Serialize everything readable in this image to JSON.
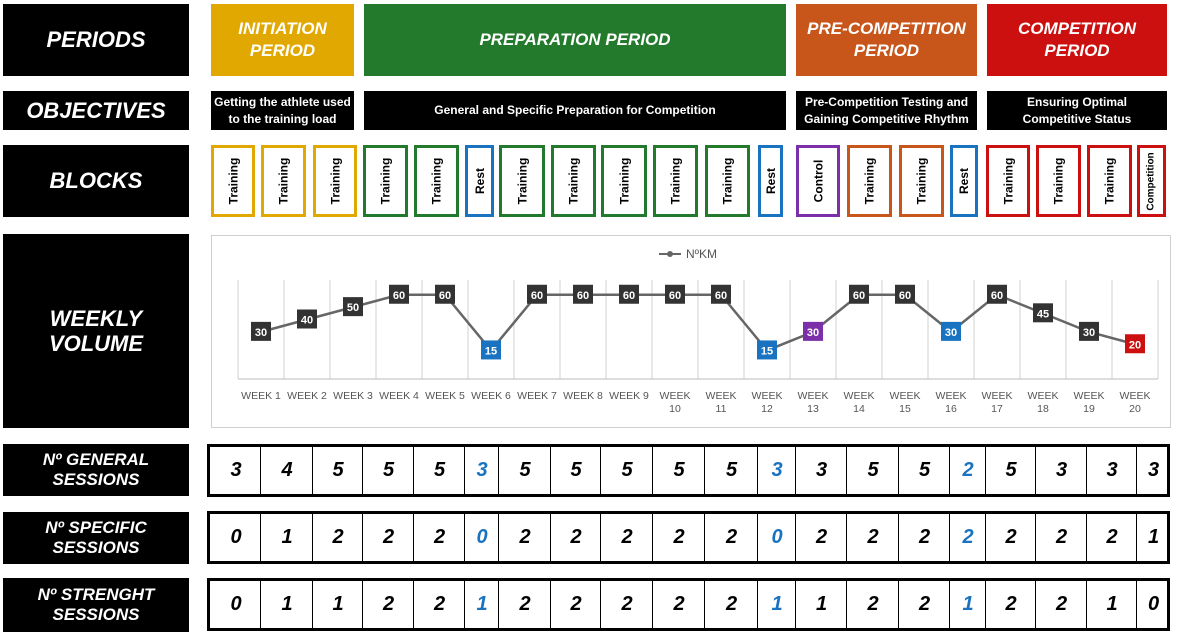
{
  "row_labels": {
    "periods": "PERIODS",
    "objectives": "OBJECTIVES",
    "blocks": "BLOCKS",
    "weekly_volume": "WEEKLY\nVOLUME",
    "general_sessions": "Nº GENERAL\nSESSIONS",
    "specific_sessions": "Nº SPECIFIC\nSESSIONS",
    "strength_sessions": "Nº STRENGHT\nSESSIONS"
  },
  "periods": [
    {
      "label": "INITIATION\nPERIOD",
      "color": "#e0a800",
      "weeks": 3
    },
    {
      "label": "PREPARATION PERIOD",
      "color": "#237a2c",
      "weeks": 9
    },
    {
      "label": "PRE-COMPETITION\nPERIOD",
      "color": "#c8561b",
      "weeks": 4
    },
    {
      "label": "COMPETITION\nPERIOD",
      "color": "#cc1010",
      "weeks": 4
    }
  ],
  "objectives": [
    {
      "text": "Getting the athlete used\nto the training load",
      "weeks": 3
    },
    {
      "text": "General and Specific Preparation for Competition",
      "weeks": 9
    },
    {
      "text": "Pre-Competition Testing and\nGaining Competitive Rhythm",
      "weeks": 4
    },
    {
      "text": "Ensuring Optimal\nCompetitive Status",
      "weeks": 4
    }
  ],
  "blocks": [
    {
      "text": "Training",
      "color": "#e0a800"
    },
    {
      "text": "Training",
      "color": "#e0a800"
    },
    {
      "text": "Training",
      "color": "#e0a800"
    },
    {
      "text": "Training",
      "color": "#237a2c"
    },
    {
      "text": "Training",
      "color": "#237a2c"
    },
    {
      "text": "Rest",
      "color": "#1a73c0"
    },
    {
      "text": "Training",
      "color": "#237a2c"
    },
    {
      "text": "Training",
      "color": "#237a2c"
    },
    {
      "text": "Training",
      "color": "#237a2c"
    },
    {
      "text": "Training",
      "color": "#237a2c"
    },
    {
      "text": "Training",
      "color": "#237a2c"
    },
    {
      "text": "Rest",
      "color": "#1a73c0"
    },
    {
      "text": "Control",
      "color": "#7b2fa8"
    },
    {
      "text": "Training",
      "color": "#c8561b"
    },
    {
      "text": "Training",
      "color": "#c8561b"
    },
    {
      "text": "Rest",
      "color": "#1a73c0"
    },
    {
      "text": "Training",
      "color": "#cc1010"
    },
    {
      "text": "Training",
      "color": "#cc1010"
    },
    {
      "text": "Training",
      "color": "#cc1010"
    },
    {
      "text": "Competition",
      "color": "#cc1010"
    }
  ],
  "chart_data": {
    "type": "line",
    "legend": "NºKM",
    "legend_position": "top",
    "categories": [
      "WEEK 1",
      "WEEK 2",
      "WEEK 3",
      "WEEK 4",
      "WEEK 5",
      "WEEK 6",
      "WEEK 7",
      "WEEK 8",
      "WEEK 9",
      "WEEK 10",
      "WEEK 11",
      "WEEK 12",
      "WEEK 13",
      "WEEK 14",
      "WEEK 15",
      "WEEK 16",
      "WEEK 17",
      "WEEK 18",
      "WEEK 19",
      "WEEK 20"
    ],
    "series": [
      {
        "name": "NºKM",
        "values": [
          30,
          40,
          50,
          60,
          60,
          15,
          60,
          60,
          60,
          60,
          60,
          15,
          30,
          60,
          60,
          30,
          60,
          45,
          30,
          20
        ]
      }
    ],
    "point_colors": [
      "#333333",
      "#333333",
      "#333333",
      "#333333",
      "#333333",
      "#1a73c0",
      "#333333",
      "#333333",
      "#333333",
      "#333333",
      "#333333",
      "#1a73c0",
      "#7b2fa8",
      "#333333",
      "#333333",
      "#1a73c0",
      "#333333",
      "#333333",
      "#333333",
      "#cc1010"
    ],
    "line_color": "#666666",
    "ylim": [
      0,
      80
    ],
    "grid": "vertical"
  },
  "general_sessions": {
    "values": [
      "3",
      "4",
      "5",
      "5",
      "5",
      "3",
      "5",
      "5",
      "5",
      "5",
      "5",
      "3",
      "3",
      "5",
      "5",
      "2",
      "5",
      "3",
      "3",
      "3"
    ],
    "colors": [
      "#000",
      "#000",
      "#000",
      "#000",
      "#000",
      "#1a73c0",
      "#000",
      "#000",
      "#000",
      "#000",
      "#000",
      "#1a73c0",
      "#000",
      "#000",
      "#000",
      "#1a73c0",
      "#000",
      "#000",
      "#000",
      "#000"
    ]
  },
  "specific_sessions": {
    "values": [
      "0",
      "1",
      "2",
      "2",
      "2",
      "0",
      "2",
      "2",
      "2",
      "2",
      "2",
      "0",
      "2",
      "2",
      "2",
      "2",
      "2",
      "2",
      "2",
      "1"
    ],
    "colors": [
      "#000",
      "#000",
      "#000",
      "#000",
      "#000",
      "#1a73c0",
      "#000",
      "#000",
      "#000",
      "#000",
      "#000",
      "#1a73c0",
      "#000",
      "#000",
      "#000",
      "#1a73c0",
      "#000",
      "#000",
      "#000",
      "#000"
    ]
  },
  "strength_sessions": {
    "values": [
      "0",
      "1",
      "1",
      "2",
      "2",
      "1",
      "2",
      "2",
      "2",
      "2",
      "2",
      "1",
      "1",
      "2",
      "2",
      "1",
      "2",
      "2",
      "1",
      "0"
    ],
    "colors": [
      "#000",
      "#000",
      "#000",
      "#000",
      "#000",
      "#1a73c0",
      "#000",
      "#000",
      "#000",
      "#000",
      "#000",
      "#1a73c0",
      "#000",
      "#000",
      "#000",
      "#1a73c0",
      "#000",
      "#000",
      "#000",
      "#000"
    ]
  }
}
